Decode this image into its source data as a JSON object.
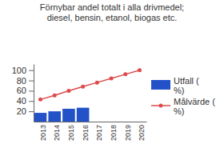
{
  "chart_data": {
    "type": "bar",
    "title": [
      "Förnybar andel totalt i alla drivmedel;",
      "diesel, bensin, etanol, biogas etc."
    ],
    "categories": [
      "2013",
      "2014",
      "2015",
      "2016",
      "2017",
      "2018",
      "2019",
      "2020"
    ],
    "series": [
      {
        "name": "Utfall ( %)",
        "type": "bar",
        "color": "#2352c8",
        "values": [
          17,
          20,
          25,
          27,
          null,
          null,
          null,
          null
        ]
      },
      {
        "name": "Målvärde ( %)",
        "type": "line",
        "color": "#dd4b4b",
        "marker": "circle",
        "values": [
          43,
          51,
          60,
          68,
          76,
          84,
          92,
          100
        ]
      }
    ],
    "ylim": [
      0,
      112
    ],
    "yticks": [
      20,
      40,
      60,
      80,
      100
    ],
    "grid": false,
    "legend": "right"
  }
}
